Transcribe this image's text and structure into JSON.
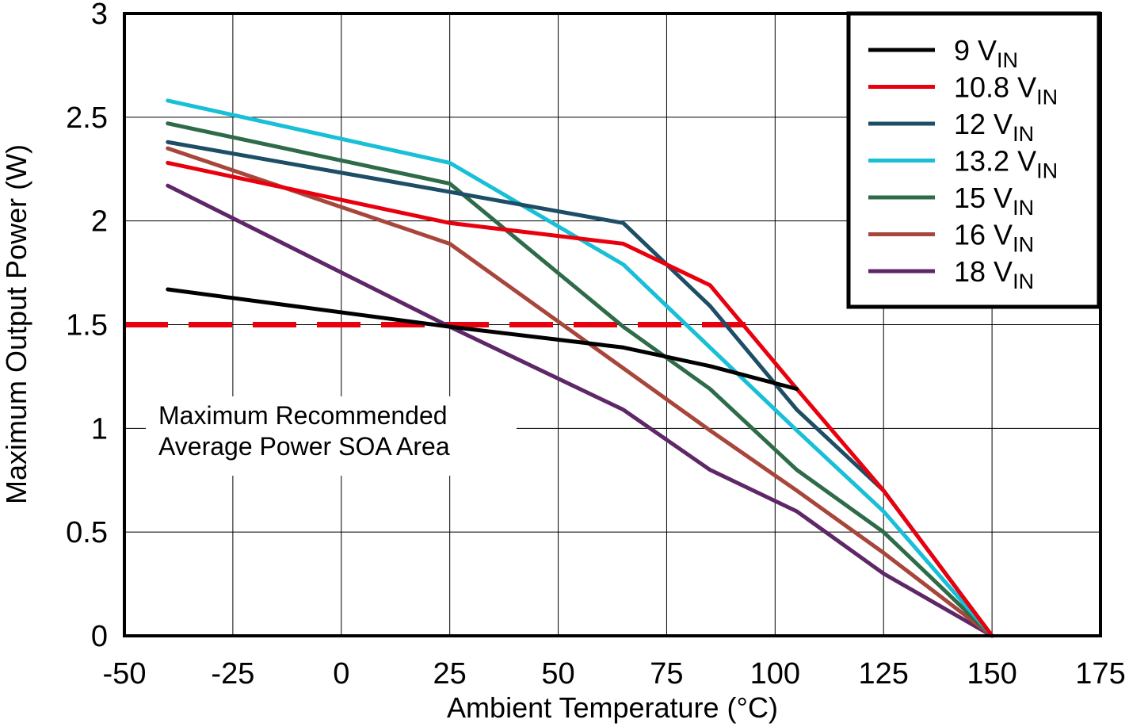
{
  "chart_data": {
    "type": "line",
    "title": "",
    "xlabel": "Ambient Temperature (°C)",
    "ylabel": "Maximum Output Power (W)",
    "xlim": [
      -50,
      175
    ],
    "ylim": [
      0,
      3
    ],
    "xticks": [
      -50,
      -25,
      0,
      25,
      50,
      75,
      100,
      125,
      150,
      175
    ],
    "yticks": [
      0,
      0.5,
      1,
      1.5,
      2,
      2.5,
      3
    ],
    "xtick_labels": [
      "-50",
      "-25",
      "0",
      "25",
      "50",
      "75",
      "100",
      "125",
      "150",
      "175"
    ],
    "ytick_labels": [
      "0",
      "0.5",
      "1",
      "1.5",
      "2",
      "2.5",
      "3"
    ],
    "grid": true,
    "legend_position": "top-right",
    "series": [
      {
        "name": "9 V",
        "subscript": "IN",
        "color": "#000000",
        "x": [
          -40,
          25,
          65,
          85,
          105
        ],
        "y": [
          1.67,
          1.49,
          1.39,
          1.3,
          1.19
        ]
      },
      {
        "name": "10.8 V",
        "subscript": "IN",
        "color": "#e8000e",
        "x": [
          -40,
          25,
          65,
          85,
          105,
          125,
          150
        ],
        "y": [
          2.28,
          1.99,
          1.89,
          1.69,
          1.19,
          0.7,
          0.0
        ]
      },
      {
        "name": "12 V",
        "subscript": "IN",
        "color": "#1d4e66",
        "x": [
          -40,
          25,
          65,
          85,
          105,
          125,
          150
        ],
        "y": [
          2.38,
          2.14,
          1.99,
          1.59,
          1.09,
          0.7,
          0.0
        ]
      },
      {
        "name": "13.2 V",
        "subscript": "IN",
        "color": "#18bfd6",
        "x": [
          -40,
          25,
          65,
          85,
          105,
          125,
          150
        ],
        "y": [
          2.58,
          2.28,
          1.79,
          1.39,
          0.99,
          0.6,
          0.0
        ]
      },
      {
        "name": "15 V",
        "subscript": "IN",
        "color": "#2e6b48",
        "x": [
          -40,
          25,
          65,
          85,
          105,
          125,
          150
        ],
        "y": [
          2.47,
          2.18,
          1.49,
          1.19,
          0.8,
          0.5,
          0.0
        ]
      },
      {
        "name": "16 V",
        "subscript": "IN",
        "color": "#a8463c",
        "x": [
          -40,
          25,
          65,
          85,
          105,
          125,
          150
        ],
        "y": [
          2.35,
          1.89,
          1.29,
          0.99,
          0.7,
          0.4,
          0.0
        ]
      },
      {
        "name": "18 V",
        "subscript": "IN",
        "color": "#5e2768",
        "x": [
          -40,
          25,
          65,
          85,
          105,
          125,
          150
        ],
        "y": [
          2.17,
          1.49,
          1.09,
          0.8,
          0.6,
          0.3,
          0.0
        ]
      }
    ],
    "reference_line": {
      "y": 1.5,
      "x_range": [
        -50,
        95
      ],
      "color": "#e8000e",
      "style": "dashed"
    },
    "annotation": {
      "lines": [
        "Maximum Recommended",
        "Average Power SOA Area"
      ]
    }
  }
}
